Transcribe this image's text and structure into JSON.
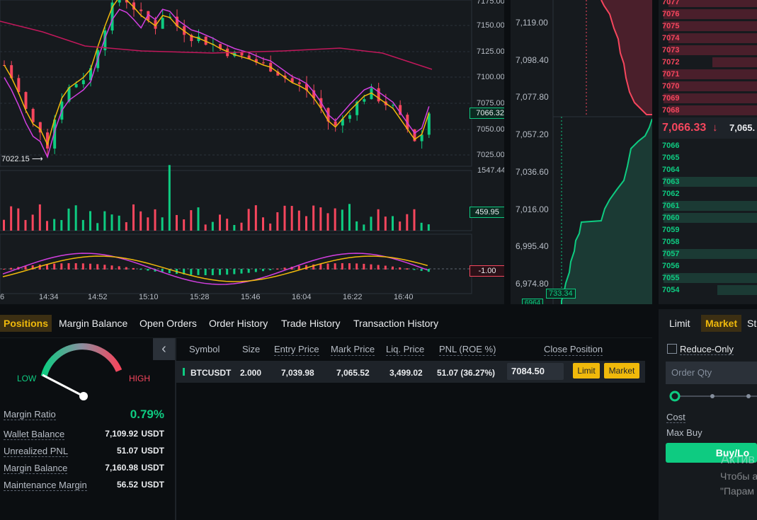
{
  "chart": {
    "price_axis": [
      "7175.00",
      "7150.00",
      "7125.00",
      "7100.00",
      "7075.00",
      "7050.00",
      "7025.00"
    ],
    "last_price_tag": "7066.32",
    "low_marker": "7022.15",
    "volume_axis_top": "1547.44",
    "volume_tag": "459.95",
    "macd_tag": "-1.00",
    "time_axis": [
      "6",
      "14:34",
      "14:52",
      "15:10",
      "15:28",
      "15:46",
      "16:04",
      "16:22",
      "16:40"
    ],
    "colors": {
      "up": "#0ecb81",
      "down": "#f6465d",
      "ma_yellow": "#f0b90b",
      "ma_magenta": "#d23fe0",
      "ma_red": "#c2185b"
    }
  },
  "depth": {
    "axis": [
      "7,119.00",
      "7,098.40",
      "7,077.80",
      "7,057.20",
      "7,036.60",
      "7,016.00",
      "6,995.40",
      "6,974.80"
    ],
    "bottom_tag": "733.34",
    "bottom_tag2": "6964"
  },
  "book": {
    "asks": [
      {
        "price": "7077",
        "depth": 0.9
      },
      {
        "price": "7076",
        "depth": 0.95
      },
      {
        "price": "7075",
        "depth": 0.95
      },
      {
        "price": "7074",
        "depth": 0.9
      },
      {
        "price": "7073",
        "depth": 0.9
      },
      {
        "price": "7072",
        "depth": 0.45
      },
      {
        "price": "7071",
        "depth": 0.95
      },
      {
        "price": "7070",
        "depth": 0.9
      },
      {
        "price": "7069",
        "depth": 0.95
      },
      {
        "price": "7068",
        "depth": 0.9
      }
    ],
    "mid_price": "7,066.33",
    "mid_arrow": "↓",
    "mid_mark": "7,065.",
    "bids": [
      {
        "price": "7066",
        "depth": 0.0
      },
      {
        "price": "7065",
        "depth": 0.0
      },
      {
        "price": "7064",
        "depth": 0.0
      },
      {
        "price": "7063",
        "depth": 0.95
      },
      {
        "price": "7062",
        "depth": 0.0
      },
      {
        "price": "7061",
        "depth": 0.95
      },
      {
        "price": "7060",
        "depth": 0.95
      },
      {
        "price": "7059",
        "depth": 0.0
      },
      {
        "price": "7058",
        "depth": 0.0
      },
      {
        "price": "7057",
        "depth": 0.95
      },
      {
        "price": "7056",
        "depth": 0.0
      },
      {
        "price": "7055",
        "depth": 0.95
      },
      {
        "price": "7054",
        "depth": 0.4
      }
    ]
  },
  "tabs": [
    "Positions",
    "Margin Balance",
    "Open Orders",
    "Order History",
    "Trade History",
    "Transaction History"
  ],
  "gauge": {
    "low": "LOW",
    "high": "HIGH"
  },
  "margin": {
    "ratio_label": "Margin Ratio",
    "ratio_value": "0.79%",
    "rows": [
      {
        "label": "Wallet Balance",
        "value": "7,109.92",
        "unit": "USDT"
      },
      {
        "label": "Unrealized PNL",
        "value": "51.07",
        "unit": "USDT"
      },
      {
        "label": "Margin Balance",
        "value": "7,160.98",
        "unit": "USDT"
      },
      {
        "label": "Maintenance Margin",
        "value": "56.52",
        "unit": "USDT"
      }
    ]
  },
  "positions": {
    "headers": [
      "Symbol",
      "Size",
      "Entry Price",
      "Mark Price",
      "Liq. Price",
      "PNL (ROE %)",
      "Close Position"
    ],
    "row": {
      "symbol": "BTCUSDT",
      "size": "2.000",
      "entry": "7,039.98",
      "mark": "7,065.52",
      "liq": "3,499.02",
      "pnl": "51.07 (36.27%)",
      "close_price": "7084.50",
      "limit": "Limit",
      "market": "Market"
    }
  },
  "order_form": {
    "tabs": [
      "Limit",
      "Market",
      "St"
    ],
    "reduce_only": "Reduce-Only",
    "order_qty_placeholder": "Order Qty",
    "cost": "Cost",
    "max_buy": "Max Buy",
    "buy_button": "Buy/Lo",
    "watermark": [
      "Актив",
      "Чтобы а",
      "\"Парам"
    ]
  }
}
